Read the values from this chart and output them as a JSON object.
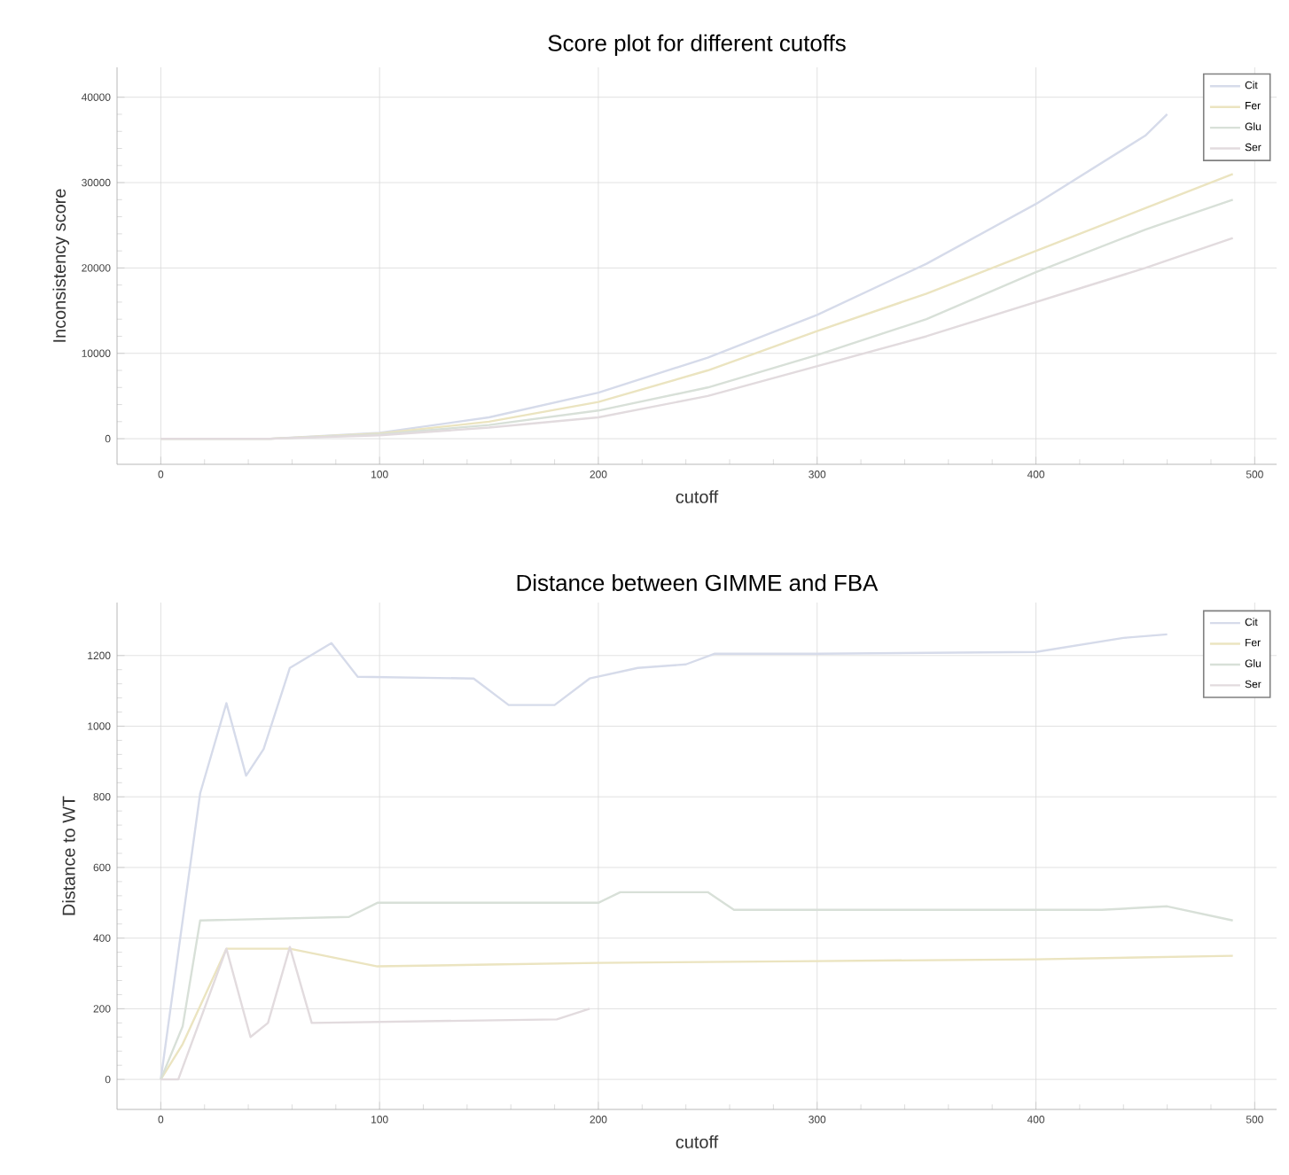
{
  "chart_data": [
    {
      "type": "line",
      "title": "Score plot for different cutoffs",
      "xlabel": "cutoff",
      "ylabel": "Inconsistency score",
      "xlim": [
        -20,
        510
      ],
      "ylim": [
        -3000,
        43500
      ],
      "xticks": [
        0,
        100,
        200,
        300,
        400,
        500
      ],
      "yticks": [
        0,
        10000,
        20000,
        30000,
        40000
      ],
      "grid": true,
      "legend": "top right",
      "series": [
        {
          "name": "Cit",
          "color": "#d6dbea",
          "x": [
            0,
            50,
            100,
            150,
            200,
            250,
            300,
            350,
            400,
            450,
            460
          ],
          "values": [
            0,
            0,
            700,
            2500,
            5400,
            9500,
            14500,
            20500,
            27500,
            35500,
            38000
          ]
        },
        {
          "name": "Fer",
          "color": "#ebe4c0",
          "x": [
            0,
            50,
            100,
            150,
            200,
            250,
            300,
            350,
            400,
            450,
            490
          ],
          "values": [
            0,
            0,
            600,
            2000,
            4300,
            8000,
            12600,
            17000,
            22000,
            27000,
            31000
          ]
        },
        {
          "name": "Glu",
          "color": "#d8e0d8",
          "x": [
            0,
            50,
            100,
            150,
            200,
            250,
            300,
            350,
            400,
            450,
            490
          ],
          "values": [
            0,
            0,
            500,
            1600,
            3300,
            6000,
            9800,
            14000,
            19500,
            24500,
            28000
          ]
        },
        {
          "name": "Ser",
          "color": "#e2dbde",
          "x": [
            0,
            50,
            100,
            150,
            200,
            250,
            300,
            350,
            400,
            450,
            490
          ],
          "values": [
            0,
            0,
            400,
            1300,
            2500,
            5000,
            8500,
            12000,
            16000,
            20000,
            23500
          ]
        }
      ]
    },
    {
      "type": "line",
      "title": "Distance between GIMME and FBA",
      "xlabel": "cutoff",
      "ylabel": "Distance to WT",
      "xlim": [
        -20,
        510
      ],
      "ylim": [
        -85,
        1350
      ],
      "xticks": [
        0,
        100,
        200,
        300,
        400,
        500
      ],
      "yticks": [
        0,
        200,
        400,
        600,
        800,
        1000,
        1200
      ],
      "grid": true,
      "legend": "top right",
      "series": [
        {
          "name": "Cit",
          "color": "#d6dbea",
          "x": [
            0,
            18,
            30,
            39,
            47,
            59,
            78,
            90,
            143,
            159,
            180,
            196,
            218,
            240,
            253,
            300,
            400,
            440,
            460
          ],
          "values": [
            0,
            810,
            1065,
            860,
            935,
            1165,
            1235,
            1140,
            1135,
            1060,
            1060,
            1135,
            1165,
            1175,
            1205,
            1205,
            1210,
            1250,
            1260
          ]
        },
        {
          "name": "Fer",
          "color": "#ebe4c0",
          "x": [
            0,
            10,
            30,
            59,
            99,
            150,
            200,
            300,
            400,
            490
          ],
          "values": [
            0,
            100,
            370,
            370,
            320,
            325,
            330,
            335,
            340,
            350
          ]
        },
        {
          "name": "Glu",
          "color": "#d8e0d8",
          "x": [
            0,
            10,
            18,
            86,
            99,
            200,
            210,
            250,
            262,
            350,
            430,
            460,
            490
          ],
          "values": [
            0,
            150,
            450,
            460,
            500,
            500,
            530,
            530,
            480,
            480,
            480,
            490,
            450
          ]
        },
        {
          "name": "Ser",
          "color": "#e2dbde",
          "x": [
            0,
            8,
            30,
            41,
            49,
            59,
            69,
            181,
            196
          ],
          "values": [
            0,
            0,
            370,
            120,
            160,
            375,
            160,
            170,
            200
          ]
        }
      ]
    }
  ]
}
